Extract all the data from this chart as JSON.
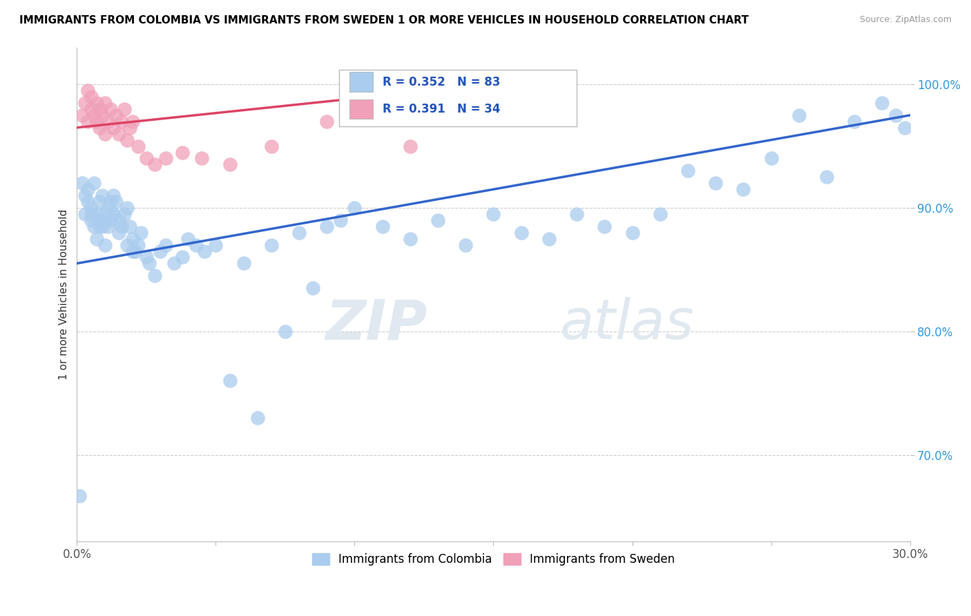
{
  "title": "IMMIGRANTS FROM COLOMBIA VS IMMIGRANTS FROM SWEDEN 1 OR MORE VEHICLES IN HOUSEHOLD CORRELATION CHART",
  "source": "Source: ZipAtlas.com",
  "ylabel": "1 or more Vehicles in Household",
  "legend_labels": [
    "Immigrants from Colombia",
    "Immigrants from Sweden"
  ],
  "colombia_R": 0.352,
  "colombia_N": 83,
  "sweden_R": 0.391,
  "sweden_N": 34,
  "colombia_color": "#aaccee",
  "sweden_color": "#f0a0b8",
  "colombia_line_color": "#3366cc",
  "sweden_line_color": "#dd4466",
  "xmin": 0.0,
  "xmax": 0.3,
  "ymin": 0.63,
  "ymax": 1.03,
  "ytick_values": [
    0.7,
    0.8,
    0.9,
    1.0
  ],
  "xtick_values": [
    0.0,
    0.05,
    0.1,
    0.15,
    0.2,
    0.25,
    0.3
  ],
  "watermark": "ZIPatlas",
  "colombia_line_x": [
    0.0,
    0.3
  ],
  "colombia_line_y": [
    0.855,
    0.975
  ],
  "sweden_line_x": [
    0.0,
    0.17
  ],
  "sweden_line_y": [
    0.965,
    1.005
  ],
  "colombia_x": [
    0.001,
    0.002,
    0.003,
    0.003,
    0.004,
    0.004,
    0.005,
    0.005,
    0.006,
    0.006,
    0.007,
    0.007,
    0.008,
    0.008,
    0.009,
    0.009,
    0.01,
    0.01,
    0.011,
    0.011,
    0.012,
    0.012,
    0.013,
    0.013,
    0.014,
    0.015,
    0.016,
    0.017,
    0.018,
    0.019,
    0.02,
    0.021,
    0.022,
    0.023,
    0.025,
    0.026,
    0.028,
    0.03,
    0.032,
    0.035,
    0.038,
    0.04,
    0.043,
    0.046,
    0.05,
    0.055,
    0.06,
    0.065,
    0.07,
    0.075,
    0.08,
    0.085,
    0.09,
    0.095,
    0.1,
    0.11,
    0.12,
    0.13,
    0.14,
    0.15,
    0.16,
    0.17,
    0.18,
    0.19,
    0.2,
    0.21,
    0.22,
    0.23,
    0.24,
    0.25,
    0.26,
    0.27,
    0.28,
    0.29,
    0.295,
    0.298,
    0.005,
    0.008,
    0.01,
    0.013,
    0.015,
    0.018,
    0.02
  ],
  "colombia_y": [
    0.667,
    0.92,
    0.91,
    0.895,
    0.905,
    0.915,
    0.9,
    0.89,
    0.885,
    0.92,
    0.875,
    0.895,
    0.89,
    0.905,
    0.91,
    0.885,
    0.895,
    0.87,
    0.9,
    0.885,
    0.89,
    0.905,
    0.895,
    0.91,
    0.905,
    0.89,
    0.885,
    0.895,
    0.9,
    0.885,
    0.875,
    0.865,
    0.87,
    0.88,
    0.86,
    0.855,
    0.845,
    0.865,
    0.87,
    0.855,
    0.86,
    0.875,
    0.87,
    0.865,
    0.87,
    0.76,
    0.855,
    0.73,
    0.87,
    0.8,
    0.88,
    0.835,
    0.885,
    0.89,
    0.9,
    0.885,
    0.875,
    0.89,
    0.87,
    0.895,
    0.88,
    0.875,
    0.895,
    0.885,
    0.88,
    0.895,
    0.93,
    0.92,
    0.915,
    0.94,
    0.975,
    0.925,
    0.97,
    0.985,
    0.975,
    0.965,
    0.895,
    0.885,
    0.89,
    0.895,
    0.88,
    0.87,
    0.865
  ],
  "sweden_x": [
    0.002,
    0.003,
    0.004,
    0.004,
    0.005,
    0.005,
    0.006,
    0.007,
    0.007,
    0.008,
    0.008,
    0.009,
    0.01,
    0.01,
    0.011,
    0.012,
    0.013,
    0.014,
    0.015,
    0.016,
    0.017,
    0.018,
    0.019,
    0.02,
    0.022,
    0.025,
    0.028,
    0.032,
    0.038,
    0.045,
    0.055,
    0.07,
    0.09,
    0.12
  ],
  "sweden_y": [
    0.975,
    0.985,
    0.97,
    0.995,
    0.98,
    0.99,
    0.975,
    0.985,
    0.97,
    0.965,
    0.98,
    0.975,
    0.985,
    0.96,
    0.97,
    0.98,
    0.965,
    0.975,
    0.96,
    0.97,
    0.98,
    0.955,
    0.965,
    0.97,
    0.95,
    0.94,
    0.935,
    0.94,
    0.945,
    0.94,
    0.935,
    0.95,
    0.97,
    0.95
  ]
}
